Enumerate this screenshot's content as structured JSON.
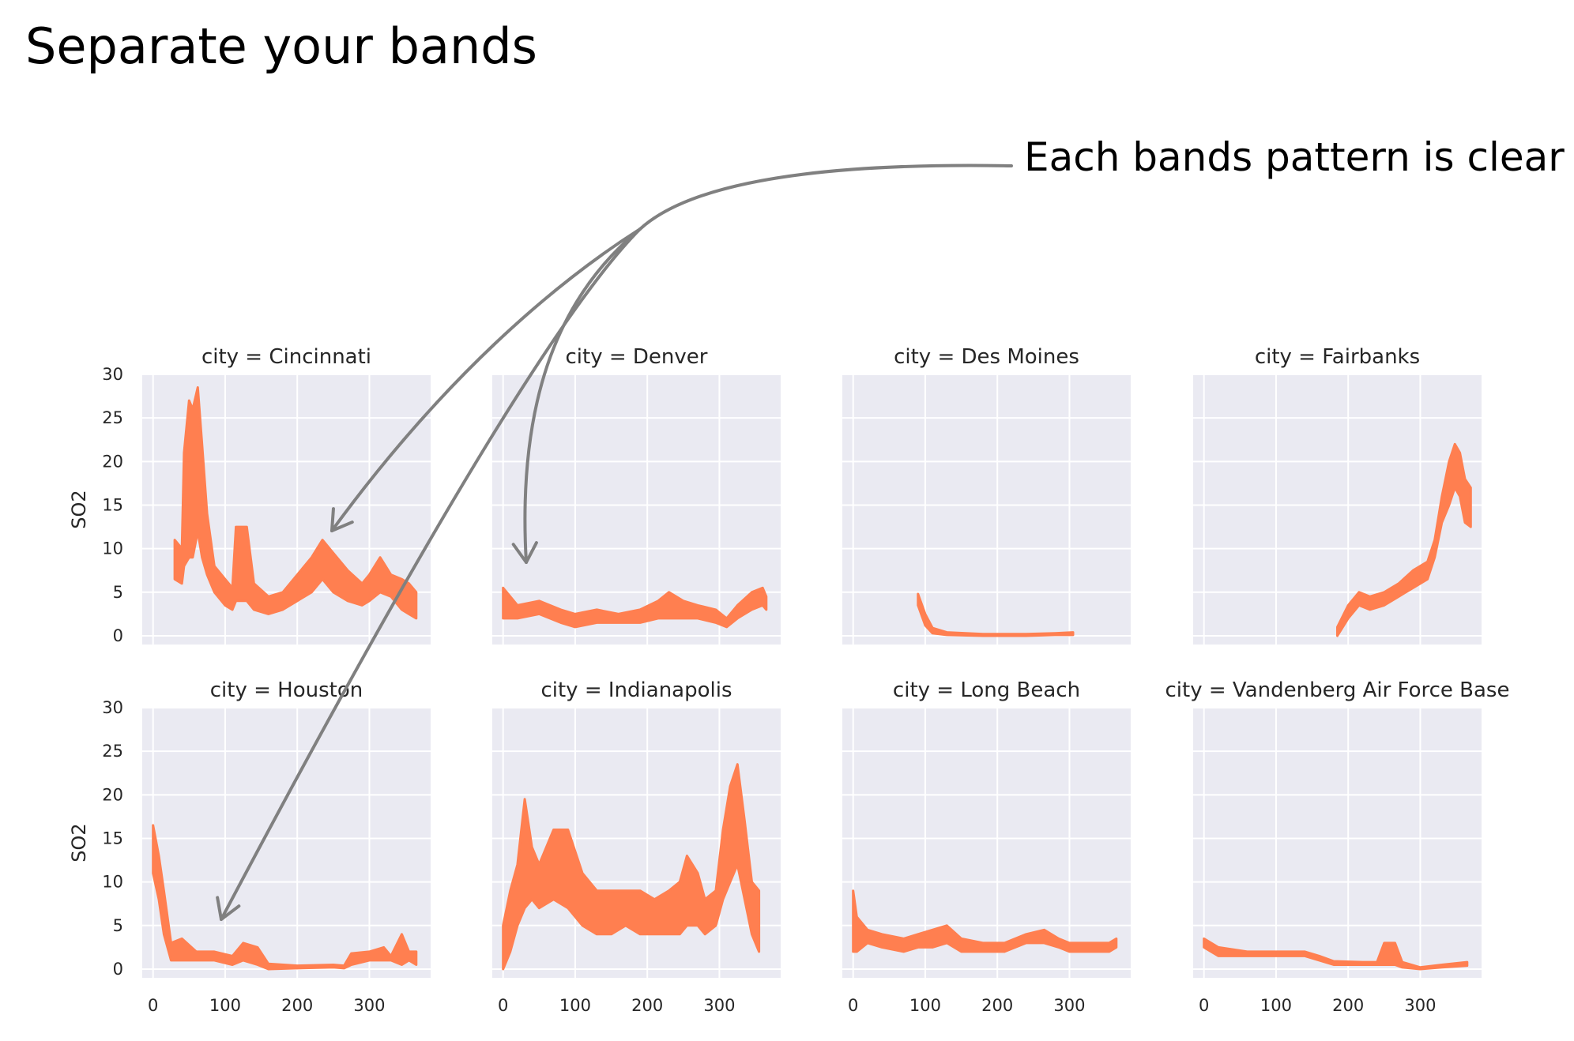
{
  "slide": {
    "title": "Separate your bands",
    "callout": "Each bands pattern is clear"
  },
  "colors": {
    "band": "#ff7f50",
    "panel_bg": "#eaeaf2",
    "grid": "#ffffff",
    "arrow": "#808080"
  },
  "chart_data": {
    "type": "area",
    "facet_by": "city",
    "ylabel": "SO2",
    "xlim": [
      -15,
      385
    ],
    "ylim": [
      -1,
      30
    ],
    "xticks": [
      0,
      100,
      200,
      300
    ],
    "yticks": [
      0,
      5,
      10,
      15,
      20,
      25,
      30
    ],
    "grid": true,
    "panels": [
      {
        "title": "city = Cincinnati",
        "points": [
          {
            "x": 30,
            "lo": 6.5,
            "hi": 11
          },
          {
            "x": 40,
            "lo": 6,
            "hi": 10
          },
          {
            "x": 43,
            "lo": 8,
            "hi": 21
          },
          {
            "x": 50,
            "lo": 9,
            "hi": 27
          },
          {
            "x": 55,
            "lo": 9,
            "hi": 26
          },
          {
            "x": 62,
            "lo": 12,
            "hi": 28.5
          },
          {
            "x": 68,
            "lo": 9,
            "hi": 22
          },
          {
            "x": 75,
            "lo": 7,
            "hi": 14
          },
          {
            "x": 85,
            "lo": 5,
            "hi": 8
          },
          {
            "x": 100,
            "lo": 3.5,
            "hi": 6.5
          },
          {
            "x": 110,
            "lo": 3,
            "hi": 5.5
          },
          {
            "x": 115,
            "lo": 4,
            "hi": 12.5
          },
          {
            "x": 130,
            "lo": 4,
            "hi": 12.5
          },
          {
            "x": 140,
            "lo": 3,
            "hi": 6
          },
          {
            "x": 160,
            "lo": 2.5,
            "hi": 4.5
          },
          {
            "x": 180,
            "lo": 3,
            "hi": 5
          },
          {
            "x": 200,
            "lo": 4,
            "hi": 7
          },
          {
            "x": 220,
            "lo": 5,
            "hi": 9
          },
          {
            "x": 235,
            "lo": 6.5,
            "hi": 11
          },
          {
            "x": 250,
            "lo": 5,
            "hi": 9.5
          },
          {
            "x": 270,
            "lo": 4,
            "hi": 7.5
          },
          {
            "x": 290,
            "lo": 3.5,
            "hi": 6
          },
          {
            "x": 300,
            "lo": 4,
            "hi": 7
          },
          {
            "x": 315,
            "lo": 5,
            "hi": 9
          },
          {
            "x": 330,
            "lo": 4.5,
            "hi": 7
          },
          {
            "x": 345,
            "lo": 3,
            "hi": 6.5
          },
          {
            "x": 355,
            "lo": 2.5,
            "hi": 6
          },
          {
            "x": 365,
            "lo": 2,
            "hi": 5
          }
        ]
      },
      {
        "title": "city = Denver",
        "points": [
          {
            "x": 0,
            "lo": 2,
            "hi": 5.5
          },
          {
            "x": 20,
            "lo": 2,
            "hi": 3.5
          },
          {
            "x": 50,
            "lo": 2.5,
            "hi": 4
          },
          {
            "x": 80,
            "lo": 1.5,
            "hi": 3
          },
          {
            "x": 100,
            "lo": 1,
            "hi": 2.5
          },
          {
            "x": 130,
            "lo": 1.5,
            "hi": 3
          },
          {
            "x": 160,
            "lo": 1.5,
            "hi": 2.5
          },
          {
            "x": 190,
            "lo": 1.5,
            "hi": 3
          },
          {
            "x": 215,
            "lo": 2,
            "hi": 4
          },
          {
            "x": 230,
            "lo": 2,
            "hi": 5
          },
          {
            "x": 250,
            "lo": 2,
            "hi": 4
          },
          {
            "x": 270,
            "lo": 2,
            "hi": 3.5
          },
          {
            "x": 295,
            "lo": 1.5,
            "hi": 3
          },
          {
            "x": 310,
            "lo": 1,
            "hi": 2
          },
          {
            "x": 325,
            "lo": 2,
            "hi": 3.5
          },
          {
            "x": 345,
            "lo": 3,
            "hi": 5
          },
          {
            "x": 360,
            "lo": 3.5,
            "hi": 5.5
          },
          {
            "x": 365,
            "lo": 3,
            "hi": 4.5
          }
        ]
      },
      {
        "title": "city = Des Moines",
        "points": [
          {
            "x": 90,
            "lo": 3.5,
            "hi": 4.8
          },
          {
            "x": 100,
            "lo": 1.2,
            "hi": 2.5
          },
          {
            "x": 110,
            "lo": 0.3,
            "hi": 0.9
          },
          {
            "x": 130,
            "lo": 0.1,
            "hi": 0.4
          },
          {
            "x": 180,
            "lo": 0,
            "hi": 0.2
          },
          {
            "x": 240,
            "lo": 0,
            "hi": 0.2
          },
          {
            "x": 280,
            "lo": 0.1,
            "hi": 0.3
          },
          {
            "x": 305,
            "lo": 0.1,
            "hi": 0.4
          }
        ]
      },
      {
        "title": "city = Fairbanks",
        "points": [
          {
            "x": 185,
            "lo": 0,
            "hi": 1
          },
          {
            "x": 200,
            "lo": 2,
            "hi": 3.5
          },
          {
            "x": 215,
            "lo": 3.5,
            "hi": 5
          },
          {
            "x": 230,
            "lo": 3,
            "hi": 4.5
          },
          {
            "x": 250,
            "lo": 3.5,
            "hi": 5
          },
          {
            "x": 270,
            "lo": 4.5,
            "hi": 6
          },
          {
            "x": 290,
            "lo": 5.5,
            "hi": 7.5
          },
          {
            "x": 310,
            "lo": 6.5,
            "hi": 8.5
          },
          {
            "x": 320,
            "lo": 9,
            "hi": 11
          },
          {
            "x": 330,
            "lo": 13,
            "hi": 16
          },
          {
            "x": 340,
            "lo": 15,
            "hi": 20
          },
          {
            "x": 348,
            "lo": 17,
            "hi": 22
          },
          {
            "x": 355,
            "lo": 16,
            "hi": 21
          },
          {
            "x": 362,
            "lo": 13,
            "hi": 18
          },
          {
            "x": 370,
            "lo": 12.5,
            "hi": 17
          }
        ]
      },
      {
        "title": "city = Houston",
        "points": [
          {
            "x": 0,
            "lo": 11,
            "hi": 16.5
          },
          {
            "x": 8,
            "lo": 8,
            "hi": 13
          },
          {
            "x": 15,
            "lo": 4,
            "hi": 9
          },
          {
            "x": 25,
            "lo": 1,
            "hi": 3
          },
          {
            "x": 40,
            "lo": 1,
            "hi": 3.5
          },
          {
            "x": 60,
            "lo": 1,
            "hi": 2
          },
          {
            "x": 85,
            "lo": 1,
            "hi": 2
          },
          {
            "x": 110,
            "lo": 0.5,
            "hi": 1.5
          },
          {
            "x": 125,
            "lo": 1,
            "hi": 3
          },
          {
            "x": 145,
            "lo": 0.5,
            "hi": 2.5
          },
          {
            "x": 160,
            "lo": 0,
            "hi": 0.6
          },
          {
            "x": 200,
            "lo": 0.1,
            "hi": 0.4
          },
          {
            "x": 250,
            "lo": 0.2,
            "hi": 0.5
          },
          {
            "x": 265,
            "lo": 0.1,
            "hi": 0.4
          },
          {
            "x": 275,
            "lo": 0.5,
            "hi": 1.8
          },
          {
            "x": 300,
            "lo": 1,
            "hi": 2
          },
          {
            "x": 320,
            "lo": 1,
            "hi": 2.5
          },
          {
            "x": 330,
            "lo": 1,
            "hi": 1.5
          },
          {
            "x": 345,
            "lo": 0.5,
            "hi": 4
          },
          {
            "x": 355,
            "lo": 1,
            "hi": 2
          },
          {
            "x": 365,
            "lo": 0.5,
            "hi": 2
          }
        ]
      },
      {
        "title": "city = Indianapolis",
        "points": [
          {
            "x": 0,
            "lo": 0,
            "hi": 5
          },
          {
            "x": 10,
            "lo": 2,
            "hi": 9
          },
          {
            "x": 20,
            "lo": 5,
            "hi": 12
          },
          {
            "x": 30,
            "lo": 7,
            "hi": 19.5
          },
          {
            "x": 40,
            "lo": 8,
            "hi": 14
          },
          {
            "x": 50,
            "lo": 7,
            "hi": 12
          },
          {
            "x": 70,
            "lo": 8,
            "hi": 16
          },
          {
            "x": 90,
            "lo": 7,
            "hi": 16
          },
          {
            "x": 110,
            "lo": 5,
            "hi": 11
          },
          {
            "x": 130,
            "lo": 4,
            "hi": 9
          },
          {
            "x": 150,
            "lo": 4,
            "hi": 9
          },
          {
            "x": 170,
            "lo": 5,
            "hi": 9
          },
          {
            "x": 190,
            "lo": 4,
            "hi": 9
          },
          {
            "x": 210,
            "lo": 4,
            "hi": 8
          },
          {
            "x": 230,
            "lo": 4,
            "hi": 9
          },
          {
            "x": 245,
            "lo": 4,
            "hi": 10
          },
          {
            "x": 255,
            "lo": 5,
            "hi": 13
          },
          {
            "x": 270,
            "lo": 5,
            "hi": 11
          },
          {
            "x": 280,
            "lo": 4,
            "hi": 8
          },
          {
            "x": 295,
            "lo": 5,
            "hi": 9
          },
          {
            "x": 305,
            "lo": 8,
            "hi": 16
          },
          {
            "x": 315,
            "lo": 10,
            "hi": 21
          },
          {
            "x": 325,
            "lo": 12,
            "hi": 23.5
          },
          {
            "x": 335,
            "lo": 8,
            "hi": 17
          },
          {
            "x": 345,
            "lo": 4,
            "hi": 10
          },
          {
            "x": 355,
            "lo": 2,
            "hi": 9
          }
        ]
      },
      {
        "title": "city = Long Beach",
        "points": [
          {
            "x": 0,
            "lo": 2,
            "hi": 9
          },
          {
            "x": 5,
            "lo": 2,
            "hi": 6
          },
          {
            "x": 20,
            "lo": 3,
            "hi": 4.5
          },
          {
            "x": 40,
            "lo": 2.5,
            "hi": 4
          },
          {
            "x": 70,
            "lo": 2,
            "hi": 3.5
          },
          {
            "x": 90,
            "lo": 2.5,
            "hi": 4
          },
          {
            "x": 110,
            "lo": 2.5,
            "hi": 4.5
          },
          {
            "x": 130,
            "lo": 3,
            "hi": 5
          },
          {
            "x": 150,
            "lo": 2,
            "hi": 3.5
          },
          {
            "x": 180,
            "lo": 2,
            "hi": 3
          },
          {
            "x": 210,
            "lo": 2,
            "hi": 3
          },
          {
            "x": 240,
            "lo": 3,
            "hi": 4
          },
          {
            "x": 265,
            "lo": 3,
            "hi": 4.5
          },
          {
            "x": 285,
            "lo": 2.5,
            "hi": 3.5
          },
          {
            "x": 300,
            "lo": 2,
            "hi": 3
          },
          {
            "x": 330,
            "lo": 2,
            "hi": 3
          },
          {
            "x": 355,
            "lo": 2,
            "hi": 3
          },
          {
            "x": 365,
            "lo": 2.5,
            "hi": 3.5
          }
        ]
      },
      {
        "title": "city = Vandenberg Air Force Base",
        "points": [
          {
            "x": 0,
            "lo": 2.5,
            "hi": 3.5
          },
          {
            "x": 20,
            "lo": 1.5,
            "hi": 2.5
          },
          {
            "x": 60,
            "lo": 1.5,
            "hi": 2
          },
          {
            "x": 100,
            "lo": 1.5,
            "hi": 2
          },
          {
            "x": 140,
            "lo": 1.5,
            "hi": 2
          },
          {
            "x": 160,
            "lo": 1,
            "hi": 1.5
          },
          {
            "x": 180,
            "lo": 0.5,
            "hi": 0.9
          },
          {
            "x": 220,
            "lo": 0.5,
            "hi": 0.8
          },
          {
            "x": 240,
            "lo": 0.5,
            "hi": 0.8
          },
          {
            "x": 250,
            "lo": 0.5,
            "hi": 3
          },
          {
            "x": 265,
            "lo": 0.5,
            "hi": 3
          },
          {
            "x": 275,
            "lo": 0.2,
            "hi": 0.8
          },
          {
            "x": 300,
            "lo": 0,
            "hi": 0.2
          },
          {
            "x": 330,
            "lo": 0.2,
            "hi": 0.5
          },
          {
            "x": 365,
            "lo": 0.4,
            "hi": 0.8
          }
        ]
      }
    ]
  }
}
